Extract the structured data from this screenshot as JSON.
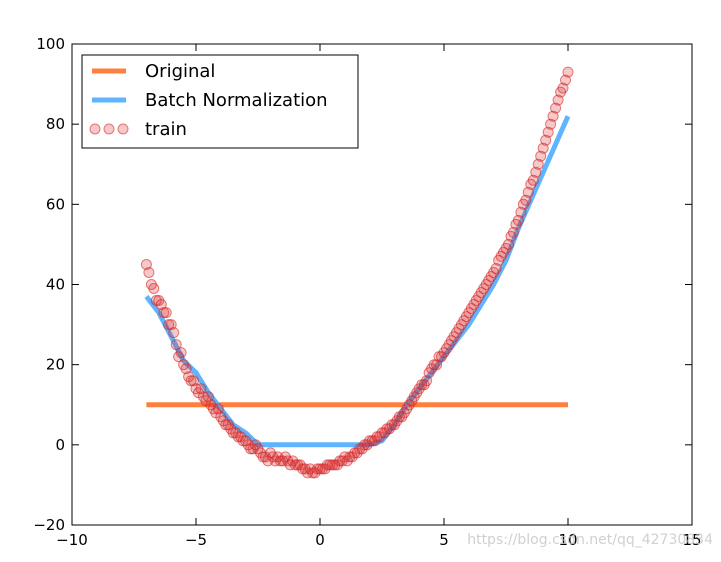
{
  "chart_data": {
    "type": "line",
    "xlim": [
      -10,
      15
    ],
    "ylim": [
      -20,
      100
    ],
    "xticks": [
      -10,
      -5,
      0,
      5,
      10,
      15
    ],
    "yticks": [
      -20,
      0,
      20,
      40,
      60,
      80,
      100
    ],
    "xtick_labels": [
      "−10",
      "−5",
      "0",
      "5",
      "10",
      "15"
    ],
    "ytick_labels": [
      "−20",
      "0",
      "20",
      "40",
      "60",
      "80",
      "100"
    ],
    "grid": false,
    "legend_position": "top-left",
    "series": [
      {
        "name": "Original",
        "kind": "line",
        "color": "#ff7f3f",
        "x": [
          -7,
          10
        ],
        "y": [
          10,
          10
        ]
      },
      {
        "name": "Batch Normalization",
        "kind": "line",
        "color": "#5eb4ff",
        "x": [
          -7,
          -6.5,
          -6,
          -5.5,
          -5,
          -4.5,
          -4,
          -3.5,
          -3,
          -2.5,
          -2,
          -1.5,
          -1,
          0,
          1,
          2,
          2.5,
          3,
          3.5,
          4,
          4.5,
          5,
          5.5,
          6,
          6.5,
          7,
          7.5,
          8,
          8.5,
          9,
          9.5,
          10
        ],
        "y": [
          37,
          33,
          27,
          21,
          18,
          13,
          9,
          5,
          3,
          0,
          0,
          0,
          0,
          0,
          0,
          0,
          1,
          5,
          10,
          14,
          18,
          22,
          26,
          30,
          35,
          40,
          46,
          54,
          61,
          68,
          75,
          82
        ]
      },
      {
        "name": "train",
        "kind": "scatter",
        "color": "#d62728",
        "x": [
          -7.0,
          -6.9,
          -6.8,
          -6.7,
          -6.6,
          -6.5,
          -6.4,
          -6.3,
          -6.2,
          -6.1,
          -6.0,
          -5.9,
          -5.8,
          -5.7,
          -5.6,
          -5.5,
          -5.4,
          -5.3,
          -5.2,
          -5.1,
          -5.0,
          -4.9,
          -4.8,
          -4.7,
          -4.6,
          -4.5,
          -4.4,
          -4.3,
          -4.2,
          -4.1,
          -4.0,
          -3.9,
          -3.8,
          -3.7,
          -3.6,
          -3.5,
          -3.4,
          -3.3,
          -3.2,
          -3.1,
          -3.0,
          -2.9,
          -2.8,
          -2.7,
          -2.6,
          -2.5,
          -2.4,
          -2.3,
          -2.2,
          -2.1,
          -2.0,
          -1.9,
          -1.8,
          -1.7,
          -1.6,
          -1.5,
          -1.4,
          -1.3,
          -1.2,
          -1.1,
          -1.0,
          -0.9,
          -0.8,
          -0.7,
          -0.6,
          -0.5,
          -0.4,
          -0.3,
          -0.2,
          -0.1,
          0.0,
          0.1,
          0.2,
          0.3,
          0.4,
          0.5,
          0.6,
          0.7,
          0.8,
          0.9,
          1.0,
          1.1,
          1.2,
          1.3,
          1.4,
          1.5,
          1.6,
          1.7,
          1.8,
          1.9,
          2.0,
          2.1,
          2.2,
          2.3,
          2.4,
          2.5,
          2.6,
          2.7,
          2.8,
          2.9,
          3.0,
          3.1,
          3.2,
          3.3,
          3.4,
          3.5,
          3.6,
          3.7,
          3.8,
          3.9,
          4.0,
          4.1,
          4.2,
          4.3,
          4.4,
          4.5,
          4.6,
          4.7,
          4.8,
          4.9,
          5.0,
          5.1,
          5.2,
          5.3,
          5.4,
          5.5,
          5.6,
          5.7,
          5.8,
          5.9,
          6.0,
          6.1,
          6.2,
          6.3,
          6.4,
          6.5,
          6.6,
          6.7,
          6.8,
          6.9,
          7.0,
          7.1,
          7.2,
          7.3,
          7.4,
          7.5,
          7.6,
          7.7,
          7.8,
          7.9,
          8.0,
          8.1,
          8.2,
          8.3,
          8.4,
          8.5,
          8.6,
          8.7,
          8.8,
          8.9,
          9.0,
          9.1,
          9.2,
          9.3,
          9.4,
          9.5,
          9.6,
          9.7,
          9.8,
          9.9,
          10.0
        ],
        "y": [
          45,
          43,
          40,
          39,
          36,
          36,
          35,
          33,
          33,
          30,
          30,
          28,
          25,
          22,
          23,
          20,
          19,
          17,
          16,
          16,
          14,
          13,
          14,
          12,
          11,
          12,
          10,
          9,
          8,
          9,
          7,
          6,
          5,
          5,
          4,
          3,
          3,
          2,
          2,
          1,
          1,
          0,
          -1,
          -1,
          0,
          -1,
          -2,
          -3,
          -3,
          -4,
          -2,
          -3,
          -4,
          -3,
          -4,
          -4,
          -3,
          -4,
          -5,
          -4,
          -5,
          -5,
          -5,
          -6,
          -6,
          -7,
          -6,
          -7,
          -7,
          -6,
          -6,
          -6,
          -6,
          -5,
          -5,
          -5,
          -5,
          -5,
          -4,
          -4,
          -3,
          -4,
          -3,
          -3,
          -2,
          -2,
          -1,
          -1,
          0,
          0,
          1,
          1,
          1,
          2,
          2,
          3,
          3,
          4,
          4,
          5,
          5,
          6,
          7,
          7,
          8,
          9,
          10,
          11,
          12,
          13,
          14,
          15,
          15,
          16,
          18,
          19,
          20,
          20,
          22,
          22,
          23,
          24,
          25,
          26,
          27,
          28,
          29,
          30,
          31,
          32,
          33,
          34,
          35,
          36,
          37,
          38,
          39,
          40,
          41,
          42,
          43,
          44,
          46,
          47,
          48,
          49,
          50,
          52,
          53,
          55,
          56,
          58,
          60,
          61,
          63,
          65,
          66,
          68,
          70,
          72,
          74,
          76,
          78,
          80,
          82,
          84,
          86,
          88,
          89,
          91,
          93
        ]
      }
    ]
  },
  "watermark": "https://blog.csdn.net/qq_42730834"
}
